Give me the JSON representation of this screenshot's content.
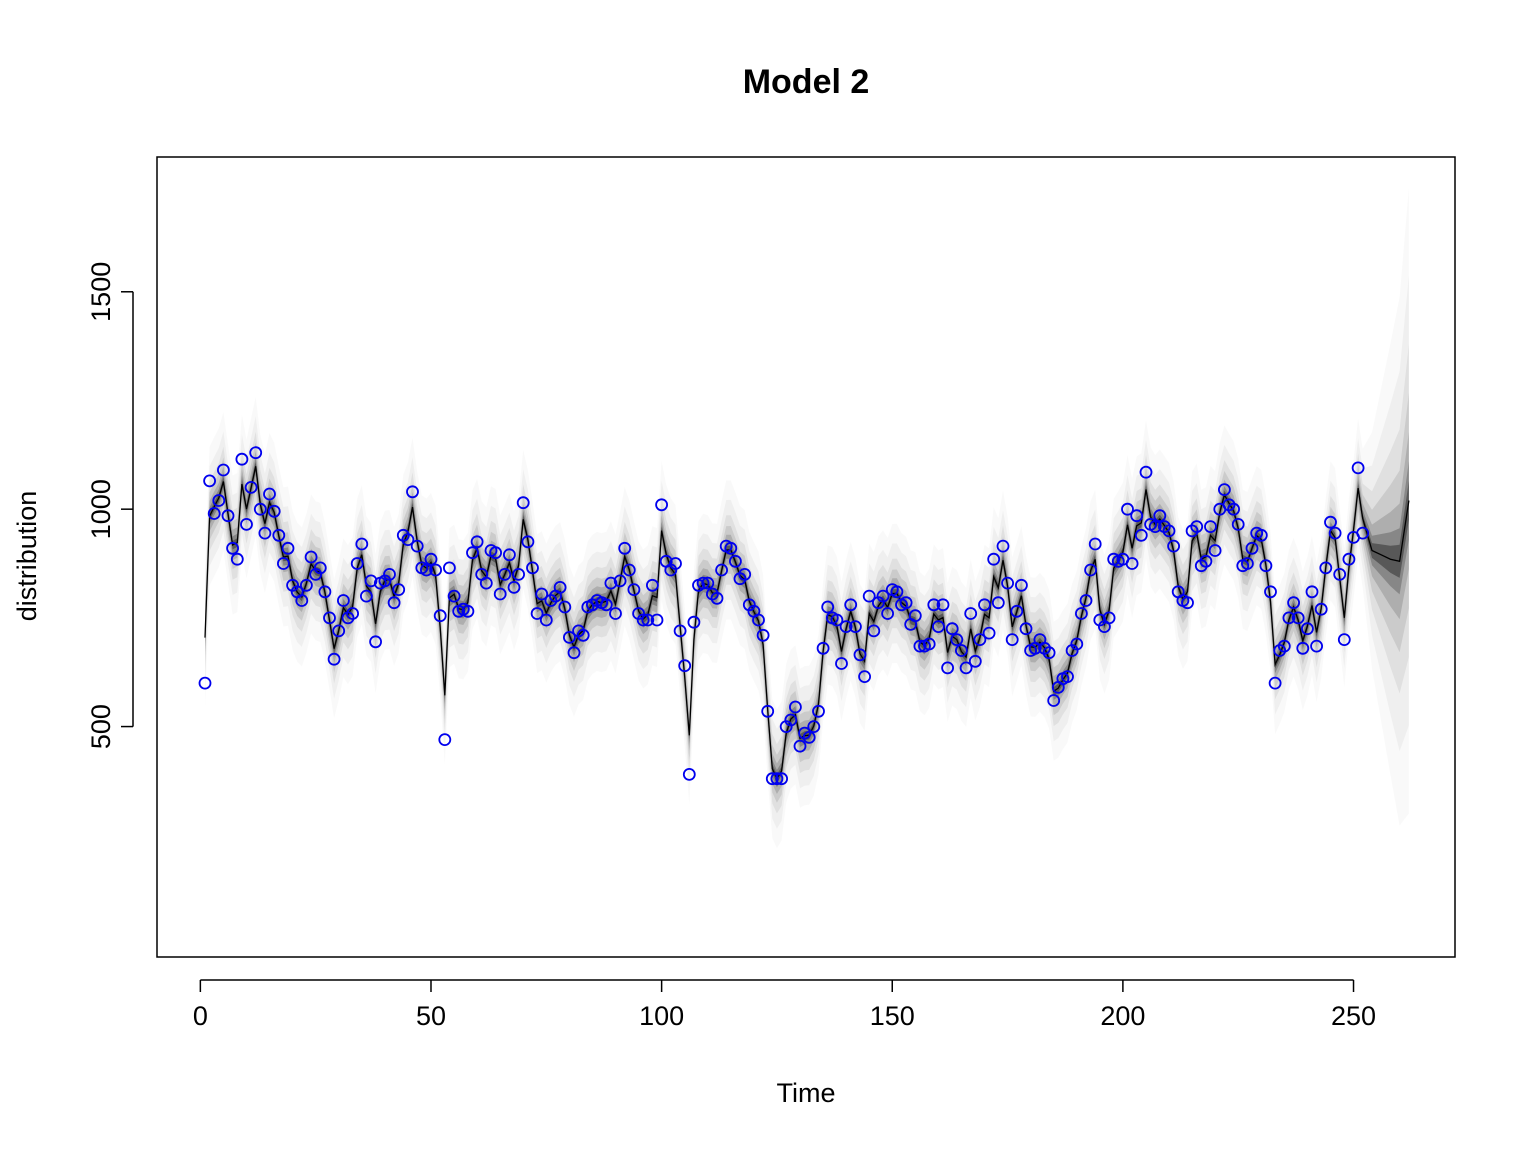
{
  "chart_data": {
    "type": "line",
    "title": "Model 2",
    "xlabel": "Time",
    "ylabel": "distribution",
    "xlim": [
      -9.4,
      272
    ],
    "ylim": [
      -30,
      1810
    ],
    "x_ticks": [
      0,
      50,
      100,
      150,
      200,
      250
    ],
    "x_tick_labels": [
      "0",
      "50",
      "100",
      "150",
      "200",
      "250"
    ],
    "y_ticks": [
      500,
      1000,
      1500
    ],
    "y_tick_labels": [
      "500",
      "1000",
      "1500"
    ],
    "grid": false,
    "legend": "none",
    "colors": {
      "observed": "#0000ee",
      "median_line": "#000000",
      "band": "#000000"
    },
    "observed": {
      "x_start": 1,
      "values": [
        600,
        1065,
        990,
        1020,
        1090,
        985,
        910,
        885,
        1115,
        965,
        1050,
        1130,
        1000,
        945,
        1035,
        995,
        940,
        875,
        910,
        825,
        810,
        790,
        825,
        890,
        850,
        865,
        810,
        750,
        655,
        720,
        790,
        750,
        760,
        875,
        920,
        800,
        835,
        695,
        830,
        835,
        850,
        785,
        815,
        940,
        930,
        1040,
        915,
        865,
        860,
        885,
        860,
        755,
        470,
        865,
        800,
        765,
        770,
        765,
        900,
        925,
        850,
        830,
        905,
        900,
        805,
        850,
        895,
        820,
        850,
        1015,
        925,
        865,
        760,
        805,
        745,
        790,
        800,
        820,
        775,
        705,
        670,
        720,
        710,
        775,
        780,
        790,
        785,
        780,
        830,
        760,
        835,
        910,
        860,
        815,
        760,
        745,
        745,
        825,
        745,
        1010,
        880,
        860,
        875,
        720,
        640,
        390,
        740,
        825,
        830,
        830,
        805,
        795,
        860,
        915,
        910,
        880,
        840,
        850,
        780,
        765,
        745,
        710,
        535,
        380,
        380,
        380,
        500,
        515,
        545,
        455,
        485,
        475,
        500,
        535,
        680,
        775,
        750,
        745,
        645,
        730,
        780,
        730,
        665,
        615,
        800,
        720,
        785,
        800,
        760,
        815,
        810,
        780,
        785,
        735,
        755,
        685,
        685,
        690,
        780,
        730,
        780,
        635,
        725,
        700,
        675,
        635,
        760,
        650,
        700,
        780,
        715,
        885,
        785,
        915,
        830,
        700,
        765,
        825,
        725,
        675,
        680,
        700,
        680,
        670,
        560,
        590,
        610,
        615,
        675,
        690,
        760,
        790,
        860,
        920,
        745,
        730,
        750,
        885,
        880,
        885,
        1000,
        875,
        985,
        940,
        1085,
        965,
        960,
        985,
        960,
        950,
        915,
        810,
        790,
        785,
        950,
        960,
        870,
        880,
        960,
        905,
        1000,
        1045,
        1010,
        1000,
        965,
        870,
        875,
        910,
        945,
        940,
        870,
        810,
        600,
        675,
        685,
        750,
        785,
        750,
        680,
        725,
        810,
        685,
        770,
        865,
        970,
        945,
        850,
        700,
        885,
        935,
        1095,
        945
      ]
    },
    "forecast": {
      "x": [
        252,
        254,
        256,
        258,
        260,
        262
      ],
      "median": [
        945,
        905,
        895,
        885,
        880,
        1020
      ]
    }
  }
}
